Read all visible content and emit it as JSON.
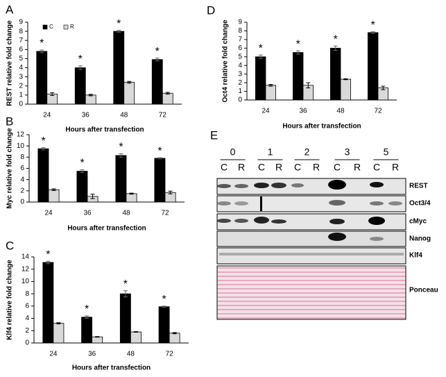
{
  "chart_data": [
    {
      "type": "bar",
      "panel_label": "A",
      "y_label": "REST  relative fold change",
      "x_label": "Hours after transfection",
      "categories": [
        "24",
        "36",
        "48",
        "72"
      ],
      "series": [
        {
          "name": "C",
          "color": "#000000",
          "values": [
            5.8,
            4.0,
            8.0,
            4.9
          ],
          "errors": [
            0.15,
            0.2,
            0.1,
            0.15
          ]
        },
        {
          "name": "R",
          "color": "#d9d9d9",
          "values": [
            1.1,
            1.0,
            2.4,
            1.2
          ],
          "errors": [
            0.15,
            0.08,
            0.1,
            0.1
          ]
        }
      ],
      "annotations": [
        "*",
        "*",
        "*",
        "*"
      ],
      "legend": "top-left",
      "ylim": [
        0,
        9
      ],
      "yticks": [
        0,
        1,
        2,
        3,
        4,
        5,
        6,
        7,
        8,
        9
      ]
    },
    {
      "type": "bar",
      "panel_label": "B",
      "y_label": "Myc relative fold change",
      "x_label": "Hours after transfection",
      "categories": [
        "24",
        "36",
        "48",
        "72"
      ],
      "series": [
        {
          "color": "#000000",
          "values": [
            9.5,
            5.5,
            8.3,
            7.8
          ],
          "errors": [
            0.2,
            0.25,
            0.3,
            0.1
          ]
        },
        {
          "color": "#d9d9d9",
          "values": [
            2.2,
            1.0,
            1.5,
            1.7
          ],
          "errors": [
            0.15,
            0.4,
            0.1,
            0.25
          ]
        }
      ],
      "annotations": [
        "*",
        "*",
        "*",
        "*"
      ],
      "ylim": [
        0,
        12
      ],
      "yticks": [
        0,
        2,
        4,
        6,
        8,
        10,
        12
      ]
    },
    {
      "type": "bar",
      "panel_label": "C",
      "y_label": "Klf4 relative fold change",
      "x_label": "Hours after transfection",
      "categories": [
        "24",
        "36",
        "48",
        "72"
      ],
      "series": [
        {
          "color": "#000000",
          "values": [
            13.1,
            4.2,
            8.0,
            5.9
          ],
          "errors": [
            0.2,
            0.2,
            0.5,
            0.1
          ]
        },
        {
          "color": "#d9d9d9",
          "values": [
            3.2,
            1.0,
            1.8,
            1.6
          ],
          "errors": [
            0.1,
            0.05,
            0.05,
            0.1
          ]
        }
      ],
      "annotations": [
        "*",
        "*",
        "*",
        "*"
      ],
      "ylim": [
        0,
        14
      ],
      "yticks": [
        0,
        2,
        4,
        6,
        8,
        10,
        12,
        14
      ]
    },
    {
      "type": "bar",
      "panel_label": "D",
      "y_label": "Oct4 relative fold change",
      "x_label": "Hours after transfection",
      "categories": [
        "24",
        "36",
        "48",
        "72"
      ],
      "series": [
        {
          "color": "#000000",
          "values": [
            5.0,
            5.5,
            6.0,
            7.8
          ],
          "errors": [
            0.2,
            0.2,
            0.25,
            0.1
          ]
        },
        {
          "color": "#d9d9d9",
          "values": [
            1.7,
            1.7,
            2.4,
            1.4
          ],
          "errors": [
            0.1,
            0.3,
            0.05,
            0.2
          ]
        }
      ],
      "annotations": [
        "*",
        "*",
        "*",
        "*"
      ],
      "ylim": [
        0,
        9
      ],
      "yticks": [
        0,
        1,
        2,
        3,
        4,
        5,
        6,
        7,
        8,
        9
      ]
    }
  ],
  "blot": {
    "panel_label": "E",
    "timepoints": [
      "0",
      "1",
      "2",
      "3",
      "5"
    ],
    "lanes": [
      "C",
      "R",
      "C",
      "R",
      "C",
      "R",
      "C",
      "R",
      "C",
      "R"
    ],
    "rows": [
      "REST",
      "Oct3/4",
      "cMyc",
      "Nanog",
      "Klf4",
      "Ponceau"
    ]
  }
}
